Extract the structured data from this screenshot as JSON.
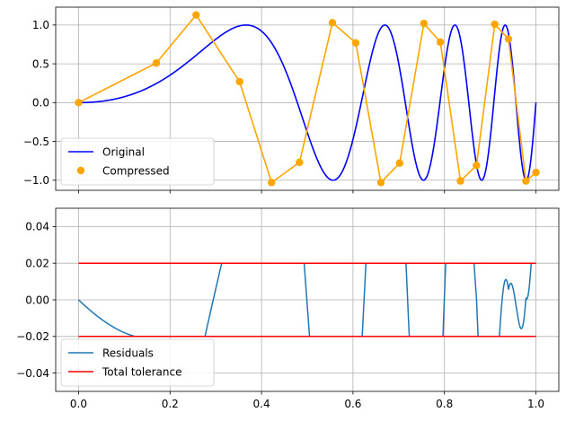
{
  "chart_data": [
    {
      "type": "line",
      "title": "",
      "xlabel": "",
      "ylabel": "",
      "xlim": [
        -0.05,
        1.05
      ],
      "ylim": [
        -1.13,
        1.23
      ],
      "xticks": [
        0.0,
        0.2,
        0.4,
        0.6,
        0.8,
        1.0
      ],
      "xtick_labels_visible": false,
      "yticks": [
        -1.0,
        -0.5,
        0.0,
        0.5,
        1.0
      ],
      "ytick_labels": [
        "−1.0",
        "−0.5",
        "0.0",
        "0.5",
        "1.0"
      ],
      "grid": true,
      "legend": {
        "placement": "lower-left",
        "entries": [
          {
            "label": "Original",
            "color": "#0000ff",
            "marker": "line"
          },
          {
            "label": "Compressed",
            "color": "#ffa500",
            "marker": "circle"
          }
        ]
      },
      "series": [
        {
          "name": "Original",
          "color": "#0000ff",
          "function": "sin(2*pi*(x + x^2)^2)"
        },
        {
          "name": "Compressed",
          "color": "#ffa500",
          "x": [
            0.0,
            0.17,
            0.257,
            0.352,
            0.422,
            0.483,
            0.555,
            0.606,
            0.661,
            0.702,
            0.755,
            0.791,
            0.835,
            0.87,
            0.91,
            0.94,
            0.978,
            1.0
          ],
          "y": [
            0.0,
            0.51,
            1.13,
            0.27,
            -1.03,
            -0.77,
            1.03,
            0.77,
            -1.03,
            -0.78,
            1.02,
            0.78,
            -1.01,
            -0.81,
            1.01,
            0.82,
            -1.01,
            -0.9
          ]
        }
      ]
    },
    {
      "type": "line",
      "title": "",
      "xlabel": "",
      "ylabel": "",
      "xlim": [
        -0.05,
        1.05
      ],
      "ylim": [
        -0.05,
        0.05
      ],
      "xticks": [
        0.0,
        0.2,
        0.4,
        0.6,
        0.8,
        1.0
      ],
      "xtick_labels": [
        "0.0",
        "0.2",
        "0.4",
        "0.6",
        "0.8",
        "1.0"
      ],
      "yticks": [
        -0.04,
        -0.02,
        0.0,
        0.02,
        0.04
      ],
      "ytick_labels": [
        "−0.04",
        "−0.02",
        "0.00",
        "0.02",
        "0.04"
      ],
      "grid": true,
      "legend": {
        "placement": "lower-left",
        "entries": [
          {
            "label": "Residuals",
            "color": "#1f77b4",
            "marker": "line"
          },
          {
            "label": "Total tolerance",
            "color": "#ff0000",
            "marker": "line"
          }
        ]
      },
      "series": [
        {
          "name": "Residuals",
          "color": "#1f77b4",
          "description_source": "Original minus linear interpolation of Compressed"
        },
        {
          "name": "Total tolerance",
          "color": "#ff0000",
          "x": [
            0.0,
            1.0
          ],
          "upper": [
            0.02,
            0.02
          ],
          "lower": [
            -0.02,
            -0.02
          ]
        }
      ]
    }
  ]
}
